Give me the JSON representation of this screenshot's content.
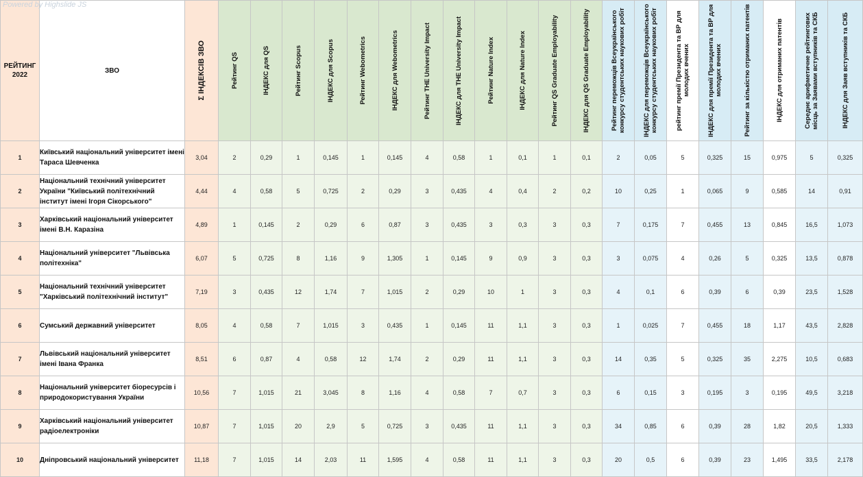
{
  "watermark": "Powered by Highslide JS",
  "headers": {
    "rank": "РЕЙТИНГ 2022",
    "name": "ЗВО",
    "sum": "Σ ІНДЕКСІВ ЗВО",
    "cols": [
      "Рейтинг QS",
      "ІНДЕКС для QS",
      "Рейтинг Scopus",
      "ІНДЕКС для Scopus",
      "Рейтинг Webometrics",
      "ІНДЕКС для Webometrics",
      "Рейтинг THE University Impact",
      "ІНДЕКС для THE University Impact",
      "Рейтинг Nature Index",
      "ІНДЕКС для Nature Index",
      "Рейтинг QS Graduate Employability",
      "ІНДЕКС для QS Graduate Employability",
      "Рейтинг переможців Всеукраїнського конкурсу студентських наукових робіт",
      "ІНДЕКС для переможців Всеукраїнського конкурсу студентських наукових робіт",
      "рейтинг премії Президента та ВР для молодих вчених",
      "ІНДЕКС для премії Президента та ВР для молодих вчених",
      "Рейтинг за кількістю отриманих патентів",
      "ІНДЕКС для отриманих патентів",
      "Середнє арифметичне рейтингових місць за Заявами вступників та СКБ",
      "ІНДЕКС для Заяв вступників та СКБ"
    ]
  },
  "rows": [
    {
      "rank": "1",
      "name": "Київський національний університет імені Тараса Шевченка",
      "sum": "3,04",
      "vals": [
        "2",
        "0,29",
        "1",
        "0,145",
        "1",
        "0,145",
        "4",
        "0,58",
        "1",
        "0,1",
        "1",
        "0,1",
        "2",
        "0,05",
        "5",
        "0,325",
        "15",
        "0,975",
        "5",
        "0,325"
      ]
    },
    {
      "rank": "2",
      "name": "Національний технічний університет України \"Київський політехнічний інститут імені Ігоря Сікорського\"",
      "sum": "4,44",
      "vals": [
        "4",
        "0,58",
        "5",
        "0,725",
        "2",
        "0,29",
        "3",
        "0,435",
        "4",
        "0,4",
        "2",
        "0,2",
        "10",
        "0,25",
        "1",
        "0,065",
        "9",
        "0,585",
        "14",
        "0,91"
      ]
    },
    {
      "rank": "3",
      "name": "Харківський національний університет імені В.Н. Каразіна",
      "sum": "4,89",
      "vals": [
        "1",
        "0,145",
        "2",
        "0,29",
        "6",
        "0,87",
        "3",
        "0,435",
        "3",
        "0,3",
        "3",
        "0,3",
        "7",
        "0,175",
        "7",
        "0,455",
        "13",
        "0,845",
        "16,5",
        "1,073"
      ]
    },
    {
      "rank": "4",
      "name": "Національний університет \"Львівська політехніка\"",
      "sum": "6,07",
      "vals": [
        "5",
        "0,725",
        "8",
        "1,16",
        "9",
        "1,305",
        "1",
        "0,145",
        "9",
        "0,9",
        "3",
        "0,3",
        "3",
        "0,075",
        "4",
        "0,26",
        "5",
        "0,325",
        "13,5",
        "0,878"
      ]
    },
    {
      "rank": "5",
      "name": "Національний технічний університет \"Харківський політехнічний інститут\"",
      "sum": "7,19",
      "vals": [
        "3",
        "0,435",
        "12",
        "1,74",
        "7",
        "1,015",
        "2",
        "0,29",
        "10",
        "1",
        "3",
        "0,3",
        "4",
        "0,1",
        "6",
        "0,39",
        "6",
        "0,39",
        "23,5",
        "1,528"
      ]
    },
    {
      "rank": "6",
      "name": "Сумський державний університет",
      "sum": "8,05",
      "vals": [
        "4",
        "0,58",
        "7",
        "1,015",
        "3",
        "0,435",
        "1",
        "0,145",
        "11",
        "1,1",
        "3",
        "0,3",
        "1",
        "0,025",
        "7",
        "0,455",
        "18",
        "1,17",
        "43,5",
        "2,828"
      ]
    },
    {
      "rank": "7",
      "name": "Львівський національний університет імені Івана Франка",
      "sum": "8,51",
      "vals": [
        "6",
        "0,87",
        "4",
        "0,58",
        "12",
        "1,74",
        "2",
        "0,29",
        "11",
        "1,1",
        "3",
        "0,3",
        "14",
        "0,35",
        "5",
        "0,325",
        "35",
        "2,275",
        "10,5",
        "0,683"
      ]
    },
    {
      "rank": "8",
      "name": "Національний університет біоресурсів і природокористування України",
      "sum": "10,56",
      "vals": [
        "7",
        "1,015",
        "21",
        "3,045",
        "8",
        "1,16",
        "4",
        "0,58",
        "7",
        "0,7",
        "3",
        "0,3",
        "6",
        "0,15",
        "3",
        "0,195",
        "3",
        "0,195",
        "49,5",
        "3,218"
      ]
    },
    {
      "rank": "9",
      "name": "Харківський національний університет радіоелектроніки",
      "sum": "10,87",
      "vals": [
        "7",
        "1,015",
        "20",
        "2,9",
        "5",
        "0,725",
        "3",
        "0,435",
        "11",
        "1,1",
        "3",
        "0,3",
        "34",
        "0,85",
        "6",
        "0,39",
        "28",
        "1,82",
        "20,5",
        "1,333"
      ]
    },
    {
      "rank": "10",
      "name": "Дніпровський національний університет",
      "sum": "11,18",
      "vals": [
        "7",
        "1,015",
        "14",
        "2,03",
        "11",
        "1,595",
        "4",
        "0,58",
        "11",
        "1,1",
        "3",
        "0,3",
        "20",
        "0,5",
        "6",
        "0,39",
        "23",
        "1,495",
        "33,5",
        "2,178"
      ]
    }
  ]
}
